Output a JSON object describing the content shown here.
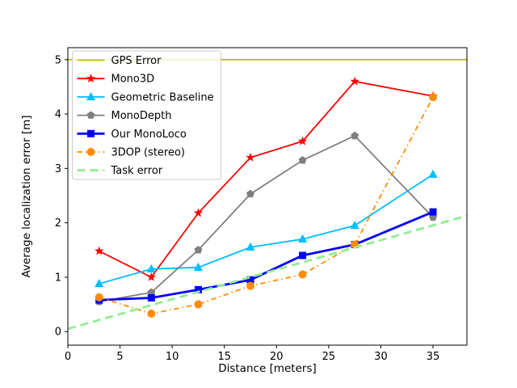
{
  "chart_data": {
    "type": "line",
    "title": "",
    "xlabel": "Distance [meters]",
    "ylabel": "Average localization error [m]",
    "xlim": [
      0,
      38.25
    ],
    "ylim": [
      -0.25,
      5.22
    ],
    "xticks": [
      0,
      5,
      10,
      15,
      20,
      25,
      30,
      35
    ],
    "yticks": [
      0,
      1,
      2,
      3,
      4,
      5
    ],
    "grid": false,
    "legend_position": "upper-left",
    "x": [
      3,
      8,
      12.5,
      17.5,
      22.5,
      27.5,
      35
    ],
    "series": [
      {
        "name": "GPS Error",
        "color": "#bfbf00",
        "style": "solid",
        "marker": "none",
        "kind": "hline",
        "y": 5.0,
        "linewidth": 1.8
      },
      {
        "name": "Mono3D",
        "color": "#ff0000",
        "style": "solid",
        "marker": "star",
        "kind": "data",
        "values": [
          1.48,
          1.0,
          2.18,
          3.2,
          3.5,
          4.6,
          4.33
        ],
        "linewidth": 1.8
      },
      {
        "name": "Geometric Baseline",
        "color": "#00bfff",
        "style": "solid",
        "marker": "triangle",
        "kind": "data",
        "values": [
          0.88,
          1.15,
          1.18,
          1.55,
          1.7,
          1.95,
          2.89
        ],
        "linewidth": 1.8
      },
      {
        "name": "MonoDepth",
        "color": "#7f7f7f",
        "style": "solid",
        "marker": "pentagon",
        "kind": "data",
        "values": [
          0.55,
          0.72,
          1.5,
          2.53,
          3.15,
          3.6,
          2.1
        ],
        "linewidth": 1.8
      },
      {
        "name": "Our MonoLoco",
        "color": "#0000ff",
        "style": "solid",
        "marker": "square",
        "kind": "data",
        "values": [
          0.58,
          0.62,
          0.77,
          0.95,
          1.4,
          1.6,
          2.2
        ],
        "linewidth": 2.8
      },
      {
        "name": "3DOP (stereo)",
        "color": "#ff8c00",
        "style": "dashdot",
        "marker": "circle",
        "kind": "data",
        "values": [
          0.63,
          0.33,
          0.5,
          0.84,
          1.05,
          1.6,
          4.31
        ],
        "linewidth": 1.8
      },
      {
        "name": "Task error",
        "color": "#90ee90",
        "style": "dashed",
        "marker": "none",
        "kind": "segment",
        "xvals": [
          0,
          38.25
        ],
        "yvals": [
          0.05,
          2.13
        ],
        "linewidth": 2.8
      }
    ]
  }
}
